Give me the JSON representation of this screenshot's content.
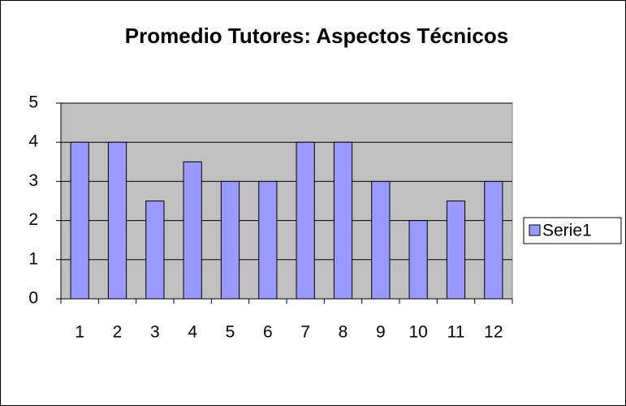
{
  "chart_data": {
    "type": "bar",
    "title": "Promedio Tutores: Aspectos Técnicos",
    "categories": [
      "1",
      "2",
      "3",
      "4",
      "5",
      "6",
      "7",
      "8",
      "9",
      "10",
      "11",
      "12"
    ],
    "series": [
      {
        "name": "Serie1",
        "color": "#9999ff",
        "values": [
          4,
          4,
          2.5,
          3.5,
          3,
          3,
          4,
          4,
          3,
          2,
          2.5,
          3
        ]
      }
    ],
    "ylim": [
      0,
      5
    ],
    "yticks": [
      0,
      1,
      2,
      3,
      4,
      5
    ],
    "grid": true,
    "legend": "right"
  }
}
